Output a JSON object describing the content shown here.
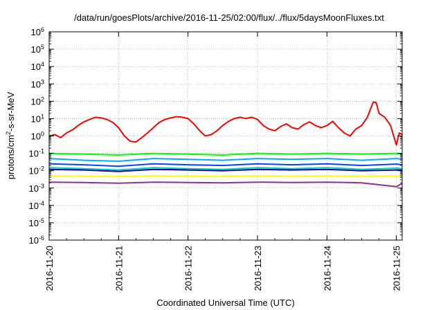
{
  "chart_data": {
    "type": "line",
    "title": "/data/run/goesPlots/archive/2016-11-25/02:00/flux/../flux/5daysMoonFluxes.txt",
    "xlabel": "Coordinated Universal Time (UTC)",
    "ylabel": {
      "prefix": "protons/cm",
      "sup": "2",
      "suffix": "-s-sr-MeV"
    },
    "y_scale": "log",
    "ylim": [
      1e-06,
      1000000.0
    ],
    "y_ticks": [
      {
        "base": "10",
        "exp": "-6"
      },
      {
        "base": "10",
        "exp": "-5"
      },
      {
        "base": "10",
        "exp": "-4"
      },
      {
        "base": "10",
        "exp": "-3"
      },
      {
        "base": "10",
        "exp": "-2"
      },
      {
        "base": "10",
        "exp": "-1"
      },
      {
        "base": "10",
        "exp": "0"
      },
      {
        "base": "10",
        "exp": "1"
      },
      {
        "base": "10",
        "exp": "2"
      },
      {
        "base": "10",
        "exp": "3"
      },
      {
        "base": "10",
        "exp": "4"
      },
      {
        "base": "10",
        "exp": "5"
      },
      {
        "base": "10",
        "exp": "6"
      }
    ],
    "xlim": [
      "2016-11-20 00:00",
      "2016-11-25 02:00"
    ],
    "x_ticks": [
      "2016-11-20",
      "2016-11-21",
      "2016-11-22",
      "2016-11-23",
      "2016-11-24",
      "2016-11-25"
    ],
    "grid": true,
    "series": [
      {
        "color": "#ff0000",
        "points": [
          [
            "2016-11-20 00:00",
            1.0
          ],
          [
            "2016-11-20 02:00",
            1.2
          ],
          [
            "2016-11-20 04:00",
            0.8
          ],
          [
            "2016-11-20 06:00",
            1.5
          ],
          [
            "2016-11-20 08:00",
            2.2
          ],
          [
            "2016-11-20 10:00",
            4.0
          ],
          [
            "2016-11-20 12:00",
            6.5
          ],
          [
            "2016-11-20 14:00",
            9.0
          ],
          [
            "2016-11-20 16:00",
            12.0
          ],
          [
            "2016-11-20 18:00",
            11.0
          ],
          [
            "2016-11-20 20:00",
            9.0
          ],
          [
            "2016-11-20 22:00",
            6.0
          ],
          [
            "2016-11-21 00:00",
            3.0
          ],
          [
            "2016-11-21 02:00",
            1.0
          ],
          [
            "2016-11-21 04:00",
            0.5
          ],
          [
            "2016-11-21 06:00",
            0.45
          ],
          [
            "2016-11-21 08:00",
            0.8
          ],
          [
            "2016-11-21 10:00",
            1.5
          ],
          [
            "2016-11-21 12:00",
            3.0
          ],
          [
            "2016-11-21 14:00",
            6.0
          ],
          [
            "2016-11-21 16:00",
            9.0
          ],
          [
            "2016-11-21 18:00",
            11.0
          ],
          [
            "2016-11-21 20:00",
            13.0
          ],
          [
            "2016-11-21 22:00",
            12.0
          ],
          [
            "2016-11-22 00:00",
            10.0
          ],
          [
            "2016-11-22 02:00",
            5.0
          ],
          [
            "2016-11-22 04:00",
            2.0
          ],
          [
            "2016-11-22 06:00",
            1.0
          ],
          [
            "2016-11-22 08:00",
            1.2
          ],
          [
            "2016-11-22 10:00",
            2.0
          ],
          [
            "2016-11-22 12:00",
            4.0
          ],
          [
            "2016-11-22 14:00",
            7.0
          ],
          [
            "2016-11-22 16:00",
            10.0
          ],
          [
            "2016-11-22 18:00",
            12.0
          ],
          [
            "2016-11-22 20:00",
            10.0
          ],
          [
            "2016-11-22 22:00",
            12.0
          ],
          [
            "2016-11-23 00:00",
            9.0
          ],
          [
            "2016-11-23 02:00",
            4.0
          ],
          [
            "2016-11-23 04:00",
            2.5
          ],
          [
            "2016-11-23 06:00",
            2.0
          ],
          [
            "2016-11-23 08:00",
            3.5
          ],
          [
            "2016-11-23 10:00",
            5.0
          ],
          [
            "2016-11-23 12:00",
            3.0
          ],
          [
            "2016-11-23 14:00",
            2.5
          ],
          [
            "2016-11-23 16:00",
            4.5
          ],
          [
            "2016-11-23 18:00",
            6.5
          ],
          [
            "2016-11-23 20:00",
            4.0
          ],
          [
            "2016-11-23 22:00",
            3.0
          ],
          [
            "2016-11-24 00:00",
            4.0
          ],
          [
            "2016-11-24 02:00",
            7.0
          ],
          [
            "2016-11-24 04:00",
            3.0
          ],
          [
            "2016-11-24 06:00",
            1.5
          ],
          [
            "2016-11-24 08:00",
            1.0
          ],
          [
            "2016-11-24 10:00",
            2.5
          ],
          [
            "2016-11-24 12:00",
            4.0
          ],
          [
            "2016-11-24 14:00",
            12.0
          ],
          [
            "2016-11-24 16:00",
            90.0
          ],
          [
            "2016-11-24 17:00",
            85.0
          ],
          [
            "2016-11-24 18:00",
            20.0
          ],
          [
            "2016-11-24 20:00",
            12.0
          ],
          [
            "2016-11-24 22:00",
            4.0
          ],
          [
            "2016-11-25 00:00",
            0.3
          ],
          [
            "2016-11-25 01:00",
            1.5
          ],
          [
            "2016-11-25 02:00",
            1.2
          ]
        ]
      },
      {
        "color": "#00ff00",
        "points": [
          [
            "2016-11-20 00:00",
            0.1
          ],
          [
            "2016-11-20 12:00",
            0.09
          ],
          [
            "2016-11-21 00:00",
            0.08
          ],
          [
            "2016-11-21 12:00",
            0.1
          ],
          [
            "2016-11-22 00:00",
            0.09
          ],
          [
            "2016-11-22 12:00",
            0.08
          ],
          [
            "2016-11-23 00:00",
            0.1
          ],
          [
            "2016-11-23 12:00",
            0.09
          ],
          [
            "2016-11-24 00:00",
            0.1
          ],
          [
            "2016-11-24 12:00",
            0.09
          ],
          [
            "2016-11-25 00:00",
            0.1
          ],
          [
            "2016-11-25 02:00",
            0.09
          ]
        ]
      },
      {
        "color": "#00aaff",
        "points": [
          [
            "2016-11-20 00:00",
            0.05
          ],
          [
            "2016-11-20 12:00",
            0.04
          ],
          [
            "2016-11-21 00:00",
            0.035
          ],
          [
            "2016-11-21 12:00",
            0.05
          ],
          [
            "2016-11-22 00:00",
            0.045
          ],
          [
            "2016-11-22 12:00",
            0.04
          ],
          [
            "2016-11-23 00:00",
            0.05
          ],
          [
            "2016-11-23 12:00",
            0.045
          ],
          [
            "2016-11-24 00:00",
            0.05
          ],
          [
            "2016-11-24 12:00",
            0.04
          ],
          [
            "2016-11-25 00:00",
            0.05
          ],
          [
            "2016-11-25 02:00",
            0.045
          ]
        ]
      },
      {
        "color": "#0044ff",
        "points": [
          [
            "2016-11-20 00:00",
            0.025
          ],
          [
            "2016-11-20 12:00",
            0.022
          ],
          [
            "2016-11-21 00:00",
            0.018
          ],
          [
            "2016-11-21 12:00",
            0.025
          ],
          [
            "2016-11-22 00:00",
            0.022
          ],
          [
            "2016-11-22 12:00",
            0.02
          ],
          [
            "2016-11-23 00:00",
            0.025
          ],
          [
            "2016-11-23 12:00",
            0.022
          ],
          [
            "2016-11-24 00:00",
            0.025
          ],
          [
            "2016-11-24 12:00",
            0.02
          ],
          [
            "2016-11-25 00:00",
            0.024
          ],
          [
            "2016-11-25 02:00",
            0.022
          ]
        ]
      },
      {
        "color": "#00cccc",
        "points": [
          [
            "2016-11-20 00:00",
            0.015
          ],
          [
            "2016-11-20 12:00",
            0.013
          ],
          [
            "2016-11-21 00:00",
            0.011
          ],
          [
            "2016-11-21 12:00",
            0.015
          ],
          [
            "2016-11-22 00:00",
            0.013
          ],
          [
            "2016-11-22 12:00",
            0.012
          ],
          [
            "2016-11-23 00:00",
            0.015
          ],
          [
            "2016-11-23 12:00",
            0.013
          ],
          [
            "2016-11-24 00:00",
            0.015
          ],
          [
            "2016-11-24 12:00",
            0.012
          ],
          [
            "2016-11-25 00:00",
            0.014
          ],
          [
            "2016-11-25 02:00",
            0.013
          ]
        ]
      },
      {
        "color": "#000099",
        "points": [
          [
            "2016-11-20 00:00",
            0.012
          ],
          [
            "2016-11-20 12:00",
            0.011
          ],
          [
            "2016-11-21 00:00",
            0.009
          ],
          [
            "2016-11-21 12:00",
            0.012
          ],
          [
            "2016-11-22 00:00",
            0.011
          ],
          [
            "2016-11-22 12:00",
            0.01
          ],
          [
            "2016-11-23 00:00",
            0.012
          ],
          [
            "2016-11-23 12:00",
            0.011
          ],
          [
            "2016-11-24 00:00",
            0.012
          ],
          [
            "2016-11-24 12:00",
            0.01
          ],
          [
            "2016-11-25 00:00",
            0.011
          ],
          [
            "2016-11-25 02:00",
            0.011
          ]
        ]
      },
      {
        "color": "#ffff00",
        "points": [
          [
            "2016-11-20 00:00",
            0.005
          ],
          [
            "2016-11-20 12:00",
            0.0048
          ],
          [
            "2016-11-21 00:00",
            0.0046
          ],
          [
            "2016-11-21 12:00",
            0.005
          ],
          [
            "2016-11-22 00:00",
            0.0048
          ],
          [
            "2016-11-22 12:00",
            0.0047
          ],
          [
            "2016-11-23 00:00",
            0.005
          ],
          [
            "2016-11-23 12:00",
            0.0048
          ],
          [
            "2016-11-24 00:00",
            0.005
          ],
          [
            "2016-11-24 12:00",
            0.0047
          ],
          [
            "2016-11-25 00:00",
            0.0049
          ],
          [
            "2016-11-25 02:00",
            0.0048
          ]
        ]
      },
      {
        "color": "#883388",
        "points": [
          [
            "2016-11-20 00:00",
            0.0022
          ],
          [
            "2016-11-20 12:00",
            0.0021
          ],
          [
            "2016-11-21 00:00",
            0.0019
          ],
          [
            "2016-11-21 12:00",
            0.0022
          ],
          [
            "2016-11-22 00:00",
            0.0021
          ],
          [
            "2016-11-22 12:00",
            0.002
          ],
          [
            "2016-11-23 00:00",
            0.0022
          ],
          [
            "2016-11-23 12:00",
            0.0021
          ],
          [
            "2016-11-24 00:00",
            0.0022
          ],
          [
            "2016-11-24 12:00",
            0.002
          ],
          [
            "2016-11-25 00:00",
            0.0012
          ],
          [
            "2016-11-25 02:00",
            0.0018
          ]
        ]
      }
    ]
  }
}
